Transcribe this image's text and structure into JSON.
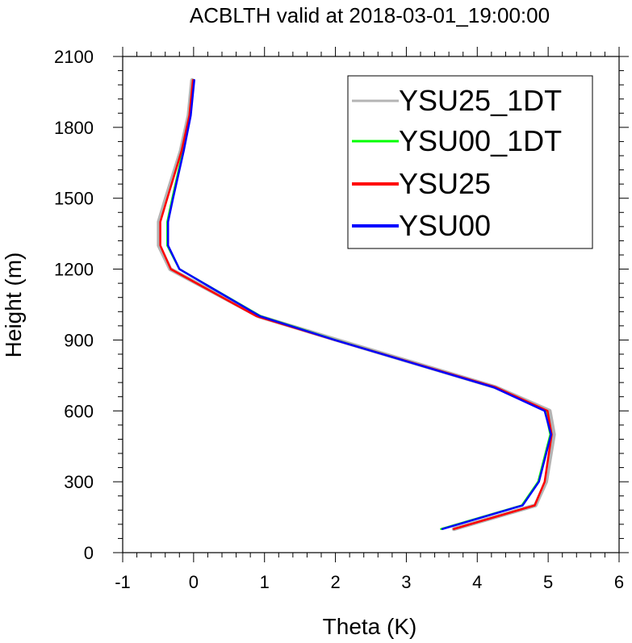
{
  "chart_data": {
    "type": "line",
    "title": "ACBLTH valid at 2018-03-01_19:00:00",
    "xlabel": "Theta (K)",
    "ylabel": "Height (m)",
    "xlim": [
      -1,
      6
    ],
    "ylim": [
      0,
      2100
    ],
    "xticks": [
      "-1",
      "0",
      "1",
      "2",
      "3",
      "4",
      "5",
      "6"
    ],
    "yticks": [
      "0",
      "300",
      "600",
      "900",
      "1200",
      "1500",
      "1800",
      "2100"
    ],
    "grid": false,
    "legend_position": "top-right",
    "series": [
      {
        "name": "YSU25_1DT",
        "color": "#b4b4b4",
        "x": [
          3.67,
          4.82,
          4.97,
          5.08,
          5.02,
          4.26,
          2.02,
          0.92,
          -0.33,
          -0.49,
          -0.49,
          -0.39,
          -0.18,
          -0.07,
          -0.02
        ],
        "y": [
          100,
          200,
          300,
          500,
          600,
          700,
          900,
          1000,
          1200,
          1300,
          1400,
          1500,
          1700,
          1850,
          2000
        ]
      },
      {
        "name": "YSU00_1DT",
        "color": "#00ff00",
        "x": [
          3.49,
          4.63,
          4.86,
          5.03,
          4.96,
          4.24,
          2.0,
          0.95,
          -0.2,
          -0.37,
          -0.37,
          -0.3,
          -0.15,
          -0.05,
          0.0
        ],
        "y": [
          100,
          200,
          300,
          500,
          600,
          700,
          900,
          1000,
          1200,
          1300,
          1400,
          1500,
          1700,
          1850,
          2000
        ]
      },
      {
        "name": "YSU25",
        "color": "#ff0000",
        "x": [
          3.67,
          4.81,
          4.95,
          5.05,
          4.99,
          4.26,
          1.99,
          0.89,
          -0.32,
          -0.47,
          -0.47,
          -0.37,
          -0.17,
          -0.06,
          -0.01
        ],
        "y": [
          100,
          200,
          300,
          500,
          600,
          700,
          900,
          1000,
          1200,
          1300,
          1400,
          1500,
          1700,
          1850,
          2000
        ]
      },
      {
        "name": "YSU00",
        "color": "#0000ff",
        "x": [
          3.51,
          4.64,
          4.87,
          5.04,
          4.95,
          4.23,
          1.99,
          0.94,
          -0.2,
          -0.36,
          -0.36,
          -0.29,
          -0.14,
          -0.04,
          0.01
        ],
        "y": [
          100,
          200,
          300,
          500,
          600,
          700,
          900,
          1000,
          1200,
          1300,
          1400,
          1500,
          1700,
          1850,
          2000
        ]
      }
    ]
  }
}
